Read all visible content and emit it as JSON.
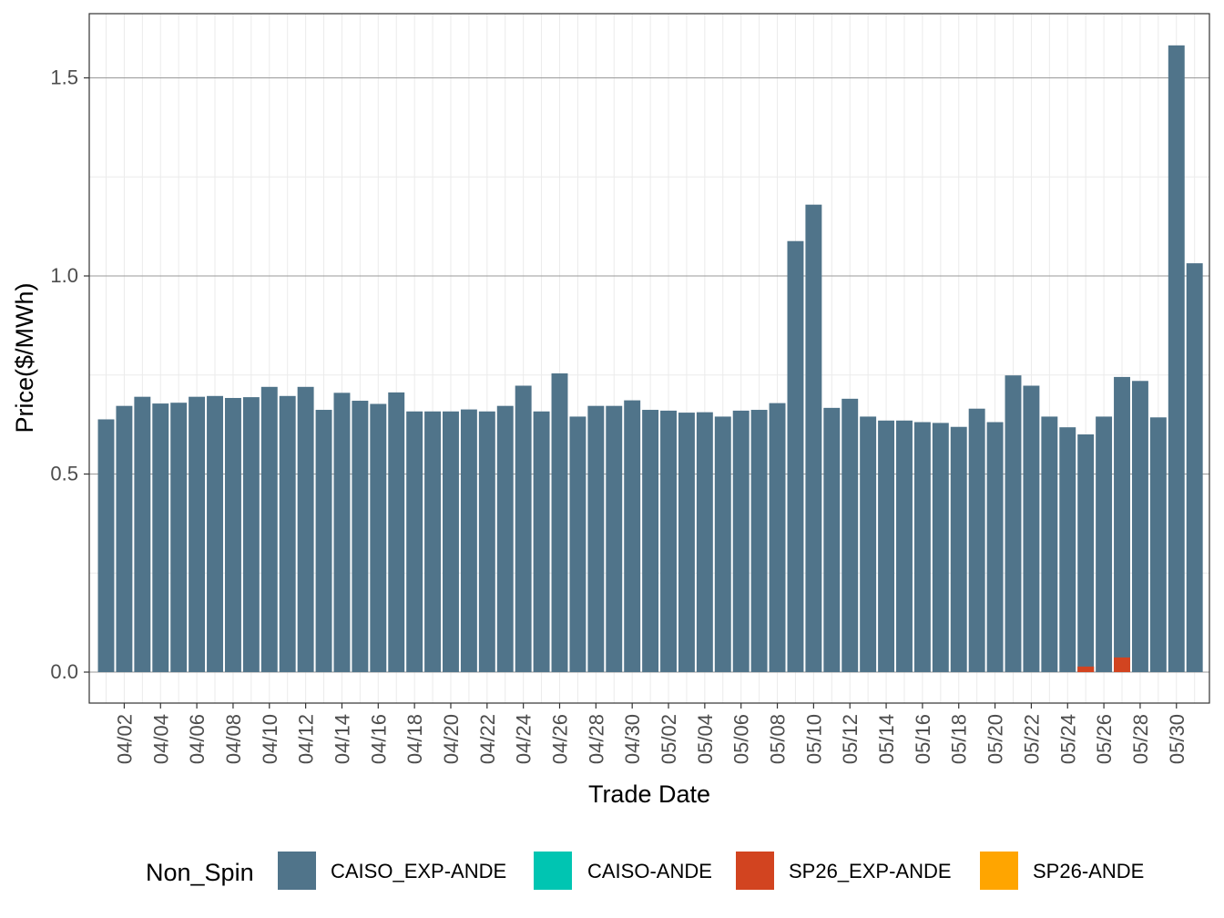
{
  "chart_data": {
    "type": "bar",
    "stacked": true,
    "xlabel": "Trade Date",
    "ylabel": "Price($/MWh)",
    "ylim": [
      -0.078,
      1.64
    ],
    "yticks": [
      0.0,
      0.5,
      1.0,
      1.5
    ],
    "ytick_labels": [
      "0.0",
      "0.5",
      "1.0",
      "1.5"
    ],
    "grid": true,
    "legend_title": "Non_Spin",
    "legend_position": "bottom",
    "categories": [
      "04/01",
      "04/02",
      "04/03",
      "04/04",
      "04/05",
      "04/06",
      "04/07",
      "04/08",
      "04/09",
      "04/10",
      "04/11",
      "04/12",
      "04/13",
      "04/14",
      "04/15",
      "04/16",
      "04/17",
      "04/18",
      "04/19",
      "04/20",
      "04/21",
      "04/22",
      "04/23",
      "04/24",
      "04/25",
      "04/26",
      "04/27",
      "04/28",
      "04/29",
      "04/30",
      "05/01",
      "05/02",
      "05/03",
      "05/04",
      "05/05",
      "05/06",
      "05/07",
      "05/08",
      "05/09",
      "05/10",
      "05/11",
      "05/12",
      "05/13",
      "05/14",
      "05/15",
      "05/16",
      "05/17",
      "05/18",
      "05/19",
      "05/20",
      "05/21",
      "05/22",
      "05/23",
      "05/24",
      "05/25",
      "05/26",
      "05/27",
      "05/28",
      "05/29",
      "05/30",
      "05/31"
    ],
    "tick_labels": [
      "04/02",
      "04/04",
      "04/06",
      "04/08",
      "04/10",
      "04/12",
      "04/14",
      "04/16",
      "04/18",
      "04/20",
      "04/22",
      "04/24",
      "04/26",
      "04/28",
      "04/30",
      "05/02",
      "05/04",
      "05/06",
      "05/08",
      "05/10",
      "05/12",
      "05/14",
      "05/16",
      "05/18",
      "05/20",
      "05/22",
      "05/24",
      "05/26",
      "05/28",
      "05/30"
    ],
    "series": [
      {
        "name": "CAISO_EXP-ANDE",
        "color": "#50748a",
        "values": [
          0.638,
          0.672,
          0.695,
          0.678,
          0.68,
          0.695,
          0.697,
          0.692,
          0.694,
          0.72,
          0.697,
          0.72,
          0.662,
          0.705,
          0.685,
          0.677,
          0.706,
          0.658,
          0.658,
          0.658,
          0.663,
          0.658,
          0.672,
          0.723,
          0.658,
          0.754,
          0.645,
          0.672,
          0.672,
          0.686,
          0.662,
          0.66,
          0.655,
          0.656,
          0.645,
          0.66,
          0.662,
          0.679,
          1.088,
          1.18,
          0.667,
          0.69,
          0.645,
          0.635,
          0.635,
          0.631,
          0.629,
          0.619,
          0.665,
          0.631,
          0.749,
          0.723,
          0.645,
          0.618,
          0.6,
          0.645,
          0.745,
          0.735,
          0.643,
          1.582,
          1.032
        ]
      },
      {
        "name": "CAISO-ANDE",
        "color": "#00c5b2",
        "values": [
          0,
          0,
          0,
          0,
          0,
          0,
          0,
          0,
          0,
          0,
          0,
          0,
          0,
          0,
          0,
          0,
          0,
          0,
          0,
          0,
          0,
          0,
          0,
          0,
          0,
          0,
          0,
          0,
          0,
          0,
          0,
          0,
          0,
          0,
          0,
          0,
          0,
          0,
          0,
          0,
          0,
          0,
          0,
          0,
          0,
          0,
          0,
          0,
          0,
          0,
          0,
          0,
          0,
          0,
          0,
          0,
          0,
          0,
          0,
          0,
          0
        ]
      },
      {
        "name": "SP26_EXP-ANDE",
        "color": "#d24420",
        "values": [
          0,
          0,
          0,
          0,
          0,
          0,
          0,
          0,
          0,
          0,
          0,
          0,
          0,
          0,
          0,
          0,
          0,
          0,
          0,
          0,
          0,
          0,
          0,
          0,
          0,
          0,
          0,
          0,
          0,
          0,
          0,
          0,
          0,
          0,
          0,
          0,
          0,
          0,
          0,
          0,
          0,
          0,
          0,
          0,
          0,
          0,
          0,
          0,
          0,
          0,
          0,
          0,
          0,
          0,
          0.014,
          0,
          0.037,
          0,
          0,
          0,
          0
        ]
      },
      {
        "name": "SP26-ANDE",
        "color": "#ffa500",
        "values": [
          0,
          0,
          0,
          0,
          0,
          0,
          0,
          0,
          0,
          0,
          0,
          0,
          0,
          0,
          0,
          0,
          0,
          0,
          0,
          0,
          0,
          0,
          0,
          0,
          0,
          0,
          0,
          0,
          0,
          0,
          0,
          0,
          0,
          0,
          0,
          0,
          0,
          0,
          0,
          0,
          0,
          0,
          0,
          0,
          0,
          0,
          0,
          0,
          0,
          0,
          0,
          0,
          0,
          0,
          0,
          0,
          0,
          0,
          0,
          0,
          0
        ]
      }
    ]
  }
}
